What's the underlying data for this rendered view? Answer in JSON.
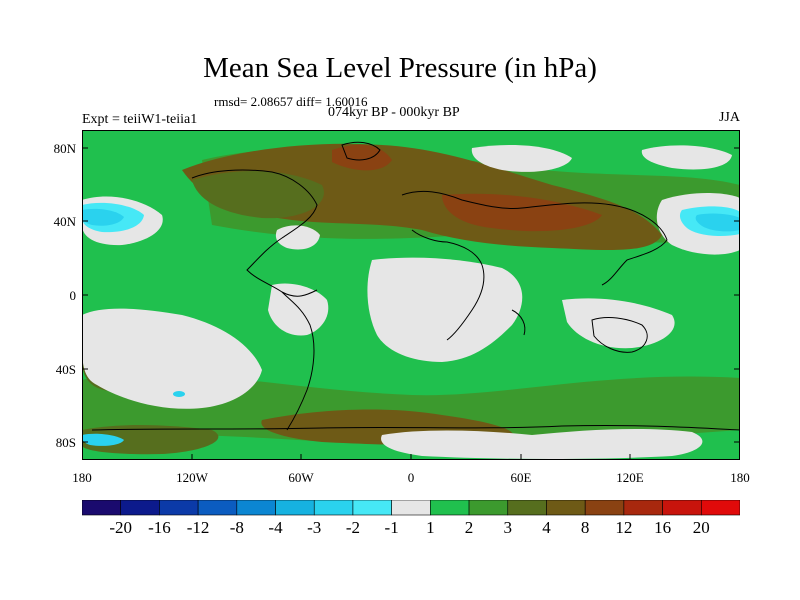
{
  "title": "Mean Sea Level Pressure (in hPa)",
  "stats": "rmsd= 2.08657 diff= 1.60016",
  "experiment": "Expt = teiiW1-teiia1",
  "period": "074kyr BP - 000kyr BP",
  "season": "JJA",
  "lat_labels": [
    "80N",
    "40N",
    "0",
    "40S",
    "80S"
  ],
  "lon_labels": [
    "180",
    "120W",
    "60W",
    "0",
    "60E",
    "120E",
    "180"
  ],
  "colorbar": {
    "labels": [
      "-20",
      "-16",
      "-12",
      "-8",
      "-4",
      "-3",
      "-2",
      "-1",
      "1",
      "2",
      "3",
      "4",
      "8",
      "12",
      "16",
      "20"
    ],
    "colors": [
      "#1a0a6e",
      "#0c1a8c",
      "#0b3aa8",
      "#0b5cc0",
      "#0b86d2",
      "#16b2e0",
      "#2ad2ee",
      "#46e8f6",
      "#e6e6e6",
      "#20c04e",
      "#3c9a2e",
      "#566e1e",
      "#6e5a16",
      "#8a4212",
      "#a8280e",
      "#c8140c",
      "#e00a0a"
    ]
  },
  "map_colors": {
    "ocean_base": "#20c04e",
    "neutral": "#e6e6e6",
    "green_dark": "#3c9a2e",
    "olive": "#566e1e",
    "brown": "#6e5a16",
    "brown_dark": "#8a4212",
    "cyan": "#2ad2ee",
    "cyan_light": "#46e8f6",
    "coast": "#000000"
  }
}
